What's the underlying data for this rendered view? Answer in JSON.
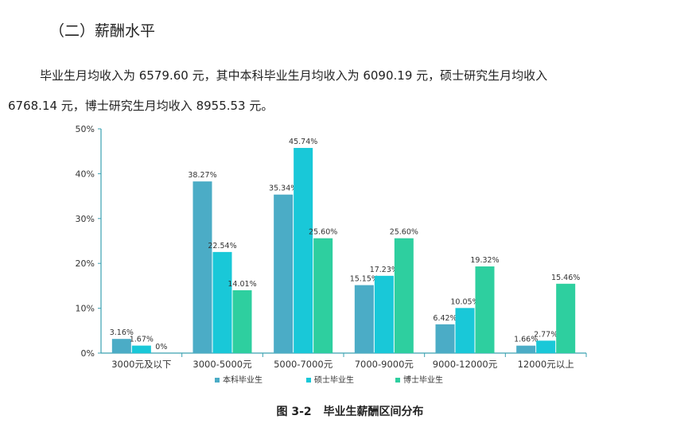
{
  "heading": "（二）薪酬水平",
  "paragraph": {
    "line1": "毕业生月均收入为 6579.60 元，其中本科毕业生月均收入为 6090.19 元，硕士研究生月均收入",
    "line2": "6768.14 元，博士研究生月均收入 8955.53 元。"
  },
  "caption": {
    "number": "图 3-2",
    "title": "毕业生薪酬区间分布"
  },
  "chart_data": {
    "type": "bar",
    "categories": [
      "3000元及以下",
      "3000-5000元",
      "5000-7000元",
      "7000-9000元",
      "9000-12000元",
      "12000元以上"
    ],
    "series": [
      {
        "name": "本科毕业生",
        "color": "#4bacc6",
        "values": [
          3.16,
          38.27,
          35.34,
          15.15,
          6.42,
          1.66
        ],
        "labels": [
          "3.16%",
          "38.27%",
          "35.34%",
          "15.15%",
          "6.42%",
          "1.66%"
        ]
      },
      {
        "name": "硕士毕业生",
        "color": "#19c8d8",
        "values": [
          1.67,
          22.54,
          45.74,
          17.23,
          10.05,
          2.77
        ],
        "labels": [
          "1.67%",
          "22.54%",
          "45.74%",
          "17.23%",
          "10.05%",
          "2.77%"
        ]
      },
      {
        "name": "博士毕业生",
        "color": "#2ecf9f",
        "values": [
          0,
          14.01,
          25.6,
          25.6,
          19.32,
          15.46
        ],
        "labels": [
          "0%",
          "14.01%",
          "25.60%",
          "25.60%",
          "19.32%",
          "15.46%"
        ]
      }
    ],
    "yticks": [
      "0%",
      "10%",
      "20%",
      "30%",
      "40%",
      "50%"
    ],
    "ylim": [
      0,
      50
    ],
    "grid": false,
    "legend": "bottom"
  }
}
